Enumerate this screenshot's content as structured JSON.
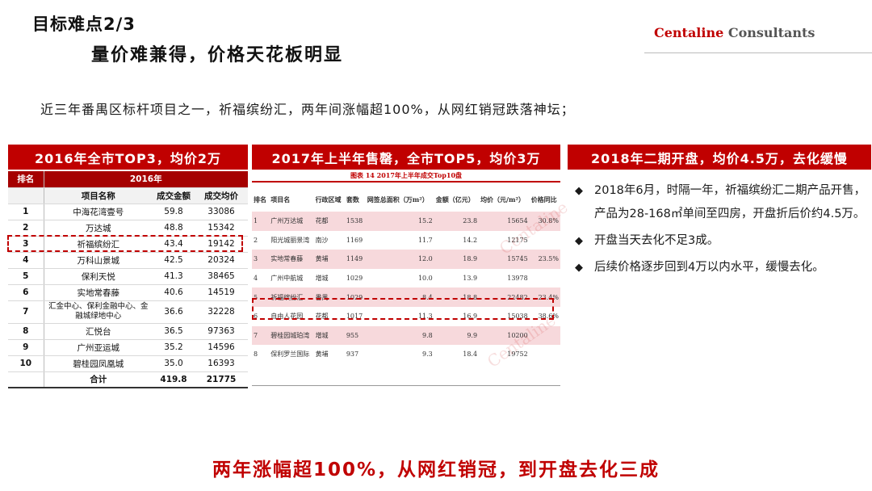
{
  "header": {
    "title": "目标难点2/3",
    "subtitle": "量价难兼得，价格天花板明显",
    "brand_part1": "Centaline",
    "brand_part2": "Consultants"
  },
  "intro": "近三年番禺区标杆项目之一，祈福缤纷汇，两年间涨幅超100%，从网红销冠跌落神坛；",
  "panels": {
    "left_title": "2016年全市TOP3，均价2万",
    "mid_title": "2017年上半年售罄，全市TOP5，均价3万",
    "right_title": "2018年二期开盘，均价4.5万，去化缓慢"
  },
  "left_table": {
    "rank_header": "排名",
    "year_header": "2016年",
    "col_name": "项目名称",
    "col_amount": "成交金额",
    "col_price": "成交均价",
    "rows": [
      {
        "rank": "1",
        "name": "中海花湾壹号",
        "amount": "59.8",
        "price": "33086"
      },
      {
        "rank": "2",
        "name": "万达城",
        "amount": "48.8",
        "price": "15342"
      },
      {
        "rank": "3",
        "name": "祈福缤纷汇",
        "amount": "43.4",
        "price": "19142"
      },
      {
        "rank": "4",
        "name": "万科山景城",
        "amount": "42.5",
        "price": "20324"
      },
      {
        "rank": "5",
        "name": "保利天悦",
        "amount": "41.3",
        "price": "38465"
      },
      {
        "rank": "6",
        "name": "实地常春藤",
        "amount": "40.6",
        "price": "14519"
      },
      {
        "rank": "7",
        "name": "汇金中心、保利金融中心、金融城绿地中心",
        "amount": "36.6",
        "price": "32228"
      },
      {
        "rank": "8",
        "name": "汇悦台",
        "amount": "36.5",
        "price": "97363"
      },
      {
        "rank": "9",
        "name": "广州亚运城",
        "amount": "35.2",
        "price": "14596"
      },
      {
        "rank": "10",
        "name": "碧桂园凤凰城",
        "amount": "35.0",
        "price": "16393"
      }
    ],
    "total_label": "合计",
    "total_amount": "419.8",
    "total_price": "21775"
  },
  "mid_table": {
    "caption": "图表 14  2017年上半年成交Top10盘",
    "headers": {
      "rank": "排名",
      "name": "项目名",
      "district": "行政区域",
      "sets": "套数",
      "area": "网签总面积（万m²）",
      "amount": "金额（亿元）",
      "price": "均价（元/m²）",
      "yoy": "价格同比"
    },
    "rows": [
      {
        "rank": "1",
        "name": "广州万达城",
        "district": "花都",
        "sets": "1538",
        "area": "15.2",
        "amount": "23.8",
        "price": "15654",
        "yoy": "30.8%"
      },
      {
        "rank": "2",
        "name": "阳光城丽景湾",
        "district": "南沙",
        "sets": "1169",
        "area": "11.7",
        "amount": "14.2",
        "price": "12175",
        "yoy": ""
      },
      {
        "rank": "3",
        "name": "实地常春藤",
        "district": "黄埔",
        "sets": "1149",
        "area": "12.0",
        "amount": "18.9",
        "price": "15745",
        "yoy": "23.5%"
      },
      {
        "rank": "4",
        "name": "广州中航城",
        "district": "增城",
        "sets": "1029",
        "area": "10.0",
        "amount": "13.9",
        "price": "13978",
        "yoy": ""
      },
      {
        "rank": "5",
        "name": "祈福缤纷汇",
        "district": "番禺",
        "sets": "1029",
        "area": "8.4",
        "amount": "18.8",
        "price": "22482",
        "yoy": "23.4%"
      },
      {
        "rank": "6",
        "name": "自由人花园",
        "district": "花都",
        "sets": "1017",
        "area": "11.3",
        "amount": "16.9",
        "price": "15038",
        "yoy": "38.6%"
      },
      {
        "rank": "7",
        "name": "碧桂园城珀湾",
        "district": "增城",
        "sets": "955",
        "area": "9.8",
        "amount": "9.9",
        "price": "10200",
        "yoy": ""
      },
      {
        "rank": "8",
        "name": "保利罗兰国际",
        "district": "黄埔",
        "sets": "937",
        "area": "9.3",
        "amount": "18.4",
        "price": "19752",
        "yoy": ""
      }
    ],
    "watermark": "Centaline"
  },
  "bullets": [
    "2018年6月，时隔一年，祈福缤纷汇二期产品开售，产品为28-168㎡单间至四房，开盘折后价约4.5万。",
    "开盘当天去化不足3成。",
    "后续价格逐步回到4万以内水平，缓慢去化。"
  ],
  "bullet_icon": "diamond-bullet-icon",
  "conclusion": "两年涨幅超100%，从网红销冠，到开盘去化三成",
  "colors": {
    "accent": "#c00000",
    "row_pink": "#f7d9dc",
    "brand_gray": "#555555"
  }
}
